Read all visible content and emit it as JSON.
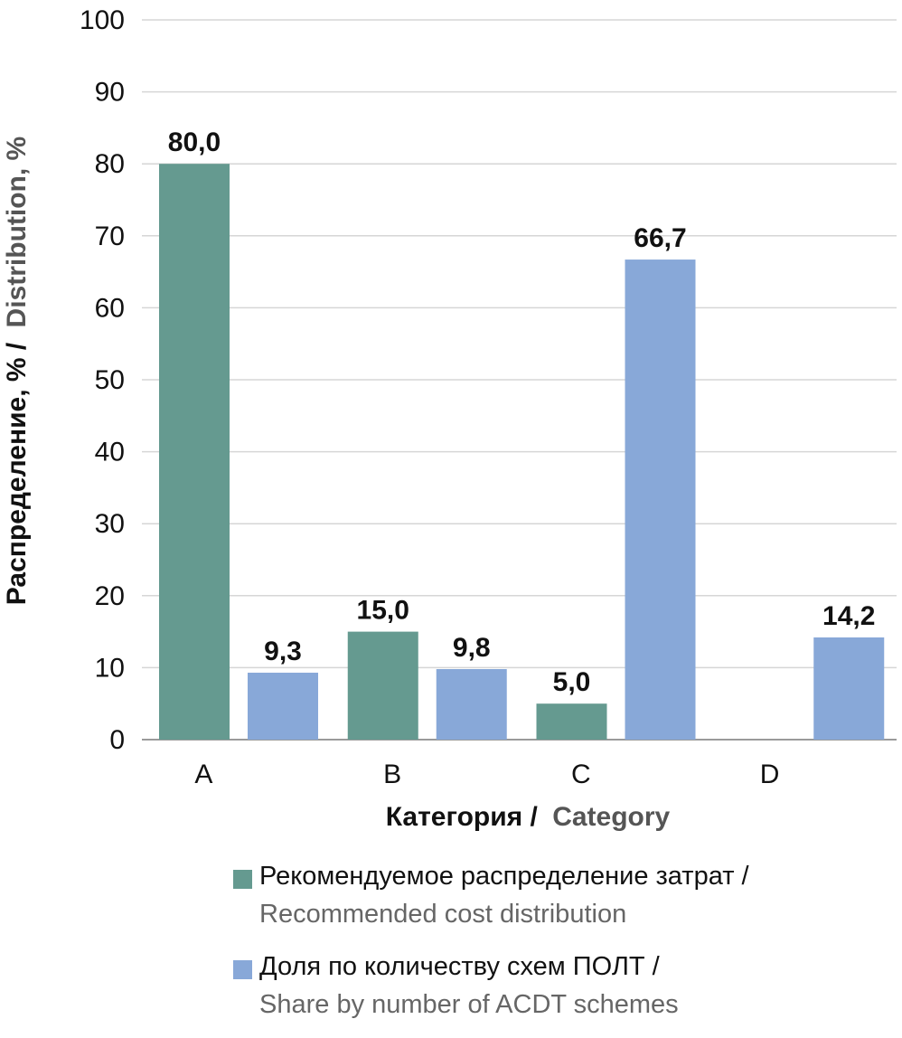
{
  "chart_data": {
    "type": "bar",
    "categories": [
      "A",
      "B",
      "C",
      "D"
    ],
    "series": [
      {
        "name": "Рекомендуемое распределение затрат / Recommended cost distribution",
        "color": "#659a90",
        "values": [
          80.0,
          15.0,
          5.0,
          null
        ],
        "labels": [
          "80,0",
          "15,0",
          "5,0",
          null
        ]
      },
      {
        "name": "Доля по количеству схем ПОЛТ / Share by number of ACDT schemes",
        "color": "#88a8d8",
        "values": [
          9.3,
          9.8,
          66.7,
          14.2
        ],
        "labels": [
          "9,3",
          "9,8",
          "66,7",
          "14,2"
        ]
      }
    ],
    "ylim": [
      0,
      100
    ],
    "yticks": [
      "0",
      "10",
      "20",
      "30",
      "40",
      "50",
      "60",
      "70",
      "80",
      "90",
      "100"
    ],
    "grid": true,
    "legend_position": "bottom",
    "xlabel": {
      "ru": "Категория /",
      "en": "Category"
    },
    "ylabel": {
      "ru": "Распределение, % /",
      "en": "Distribution, %"
    }
  },
  "legend": [
    {
      "line1": "Рекомендуемое распределение затрат /",
      "line2": "Recommended cost distribution",
      "color": "#659a90"
    },
    {
      "line1": "Доля по количеству схем ПОЛТ /",
      "line2": "Share by number of ACDT schemes",
      "color": "#88a8d8"
    }
  ]
}
